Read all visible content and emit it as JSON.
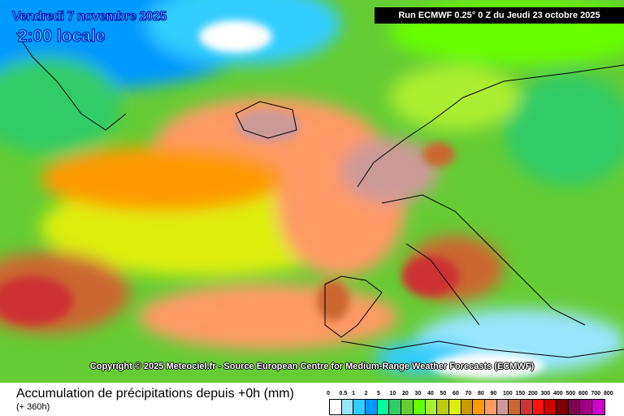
{
  "header": {
    "valid_date": "Vendredi 7 novembre 2025",
    "valid_time": "2:00 locale",
    "run_info": "Run ECMWF 0.25° 0 Z du Jeudi 23 octobre 2025"
  },
  "copyright": "Copyright © 2025 Meteociel.fr - Source European Centre for Medium-Range Weather Forecasts (ECMWF)",
  "footer": {
    "title": "Accumulation de précipitations depuis +0h (mm)",
    "subtitle": "(+ 360h)"
  },
  "legend": {
    "labels": [
      "0",
      "0.5",
      "1",
      "2",
      "5",
      "10",
      "20",
      "30",
      "40",
      "50",
      "60",
      "70",
      "80",
      "90",
      "100",
      "150",
      "200",
      "300",
      "400",
      "500",
      "600",
      "700",
      "800"
    ],
    "colors": [
      "#ffffff",
      "#99e5ff",
      "#33ccff",
      "#0099ff",
      "#00ff99",
      "#33cc66",
      "#66cc33",
      "#66ff00",
      "#aaee33",
      "#bbcc11",
      "#ddee11",
      "#cc9900",
      "#ff9900",
      "#ff9966",
      "#cc9999",
      "#cc6633",
      "#cc3333",
      "#ff1111",
      "#cc0000",
      "#800000",
      "#800050",
      "#a00080",
      "#cc00cc"
    ]
  }
}
